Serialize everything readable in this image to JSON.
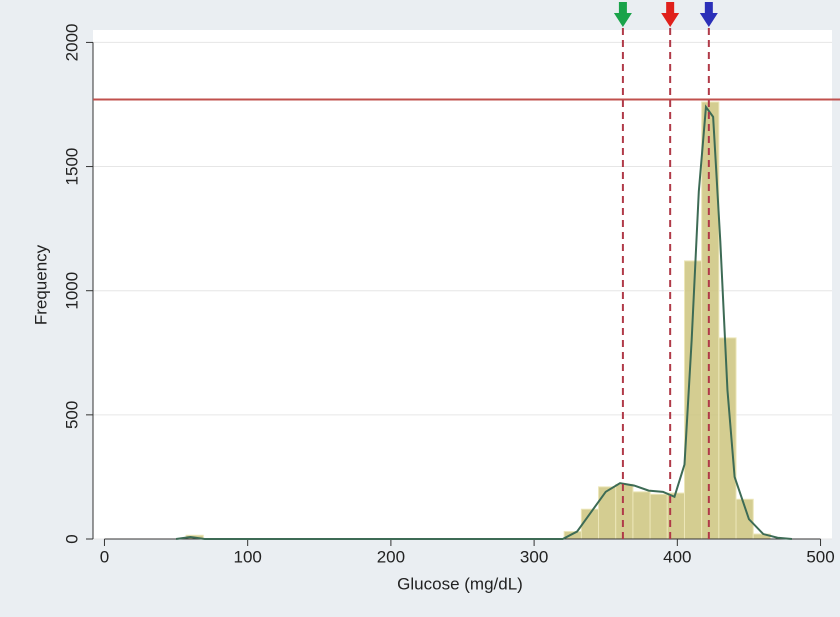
{
  "chart_data": {
    "type": "histogram",
    "x_label": "Glucose (mg/dL)",
    "y_label": "Frequency",
    "bins": [
      57,
      69,
      81,
      93,
      105,
      117,
      129,
      141,
      153,
      165,
      177,
      189,
      201,
      213,
      225,
      237,
      249,
      261,
      273,
      285,
      297,
      309,
      321,
      333,
      345,
      357,
      369,
      381,
      393,
      405,
      417,
      429,
      441,
      453,
      465
    ],
    "values": [
      15,
      0,
      0,
      0,
      0,
      0,
      0,
      0,
      0,
      0,
      0,
      0,
      0,
      0,
      0,
      0,
      0,
      0,
      0,
      0,
      0,
      0,
      30,
      120,
      210,
      220,
      190,
      180,
      185,
      1120,
      1760,
      810,
      160,
      20
    ],
    "color": "#cdc47e",
    "xlim": [
      -8,
      508
    ],
    "ylim": [
      0,
      2050
    ],
    "xticks": [
      0,
      100,
      200,
      300,
      400,
      500
    ],
    "yticks": [
      0,
      500,
      1000,
      1500,
      2000
    ],
    "grid": true,
    "density": {
      "color": "#3d6b55",
      "x": [
        50,
        60,
        70,
        300,
        320,
        330,
        340,
        350,
        360,
        370,
        380,
        390,
        398,
        405,
        410,
        415,
        420,
        425,
        430,
        435,
        440,
        450,
        460,
        470,
        480
      ],
      "values": [
        0,
        8,
        0,
        0,
        0,
        30,
        110,
        190,
        225,
        215,
        195,
        190,
        170,
        300,
        800,
        1400,
        1740,
        1700,
        1200,
        600,
        250,
        80,
        20,
        5,
        0
      ]
    },
    "hline": {
      "value": 1770,
      "color": "#c0504d"
    },
    "vlines": [
      {
        "value": 362,
        "color": "#1aa34a"
      },
      {
        "value": 395,
        "color": "#e0201b"
      },
      {
        "value": 422,
        "color": "#2b2fb8"
      }
    ]
  }
}
